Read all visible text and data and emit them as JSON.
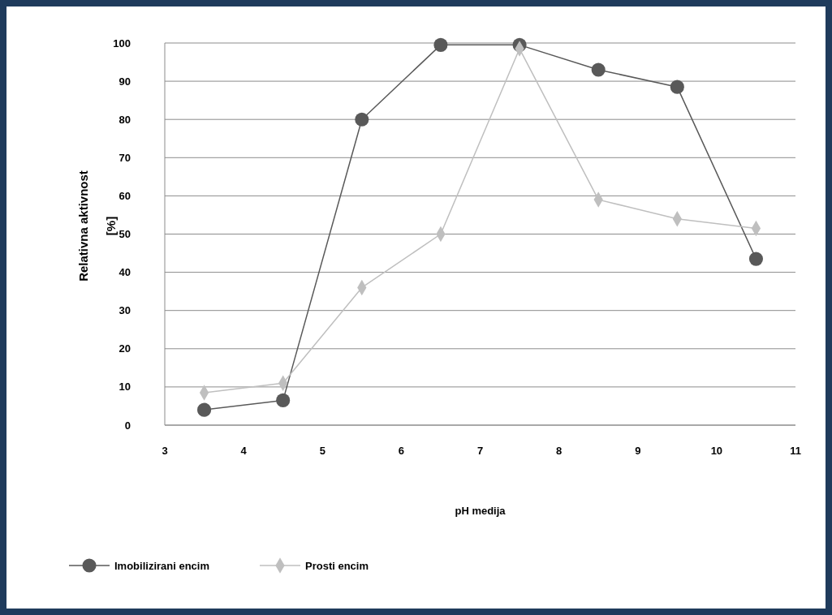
{
  "chart_data": {
    "type": "line",
    "xlabel": "pH medija",
    "ylabel": "Relativna aktivnost [%]",
    "xlim": [
      3,
      11
    ],
    "xticks": [
      3,
      4,
      5,
      6,
      7,
      8,
      9,
      10,
      11
    ],
    "ylim": [
      0,
      100
    ],
    "yticks": [
      0,
      10,
      20,
      30,
      40,
      50,
      60,
      70,
      80,
      90,
      100
    ],
    "x": [
      3.5,
      4.5,
      5.5,
      6.5,
      7.5,
      8.5,
      9.5,
      10.5
    ],
    "grid": "y",
    "legend": "bottom left",
    "line_style": "solid",
    "series": [
      {
        "name": "Imobilizirani encim",
        "color": "#595959",
        "marker": "circle",
        "values": [
          4,
          6.5,
          80,
          99.5,
          99.5,
          93,
          88.5,
          43.5
        ]
      },
      {
        "name": "Prosti encim",
        "color": "#bfbfbf",
        "marker": "diamond",
        "values": [
          8.5,
          11,
          36,
          50,
          98.5,
          59,
          54,
          51.5
        ]
      }
    ]
  }
}
